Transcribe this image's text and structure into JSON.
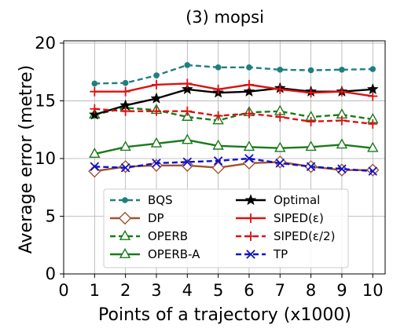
{
  "chart_data": {
    "type": "line",
    "title": "(3) mopsi",
    "xlabel": "Points of a trajectory (x1000)",
    "ylabel": "Average error (metre)",
    "xlim": [
      0,
      10.4
    ],
    "ylim": [
      0,
      20.2
    ],
    "x_ticks": [
      "0",
      "1",
      "2",
      "3",
      "4",
      "5",
      "6",
      "7",
      "8",
      "9",
      "10"
    ],
    "y_ticks": [
      "0",
      "5",
      "10",
      "15",
      "20"
    ],
    "grid": true,
    "legend_position": "lower-center",
    "legend_columns": 2,
    "x": [
      1,
      2,
      3,
      4,
      5,
      6,
      7,
      8,
      9,
      10
    ],
    "series": [
      {
        "name": "BQS",
        "color": "#1f7f7f",
        "dash": "dashed",
        "marker": "circle-filled",
        "values": [
          16.5,
          16.55,
          17.2,
          18.1,
          17.9,
          17.9,
          17.7,
          17.65,
          17.7,
          17.75
        ]
      },
      {
        "name": "DP",
        "color": "#a0522d",
        "dash": "solid",
        "marker": "diamond-open",
        "values": [
          8.9,
          9.3,
          9.4,
          9.4,
          9.2,
          9.6,
          9.7,
          9.3,
          9.0,
          9.0
        ]
      },
      {
        "name": "OPERB",
        "color": "#1a7a1a",
        "dash": "dashed",
        "marker": "triangle-open",
        "values": [
          13.8,
          14.4,
          14.2,
          13.6,
          13.3,
          14.0,
          14.1,
          13.6,
          13.8,
          13.4
        ]
      },
      {
        "name": "OPERB-A",
        "color": "#1a7a1a",
        "dash": "solid",
        "marker": "triangle-open",
        "values": [
          10.4,
          11.0,
          11.3,
          11.6,
          11.1,
          11.0,
          10.9,
          11.0,
          11.2,
          10.9
        ]
      },
      {
        "name": "Optimal",
        "color": "#000000",
        "dash": "solid",
        "marker": "star",
        "values": [
          13.8,
          14.6,
          15.2,
          16.0,
          15.7,
          15.8,
          16.1,
          15.8,
          15.8,
          16.0
        ]
      },
      {
        "name": "SIPED(ε)",
        "color": "#dd1111",
        "dash": "solid",
        "marker": "plus",
        "values": [
          15.8,
          15.8,
          16.4,
          16.5,
          16.0,
          16.4,
          16.0,
          15.7,
          15.8,
          15.4
        ]
      },
      {
        "name": "SIPED(ε/2)",
        "color": "#dd1111",
        "dash": "dashed",
        "marker": "plus",
        "values": [
          14.3,
          14.1,
          14.1,
          14.1,
          13.7,
          13.9,
          13.6,
          13.2,
          13.3,
          13.0
        ]
      },
      {
        "name": "TP",
        "color": "#1010cc",
        "dash": "dashed",
        "marker": "x",
        "values": [
          9.3,
          9.2,
          9.6,
          9.7,
          9.8,
          10.0,
          9.6,
          9.3,
          9.1,
          8.9
        ]
      }
    ]
  }
}
